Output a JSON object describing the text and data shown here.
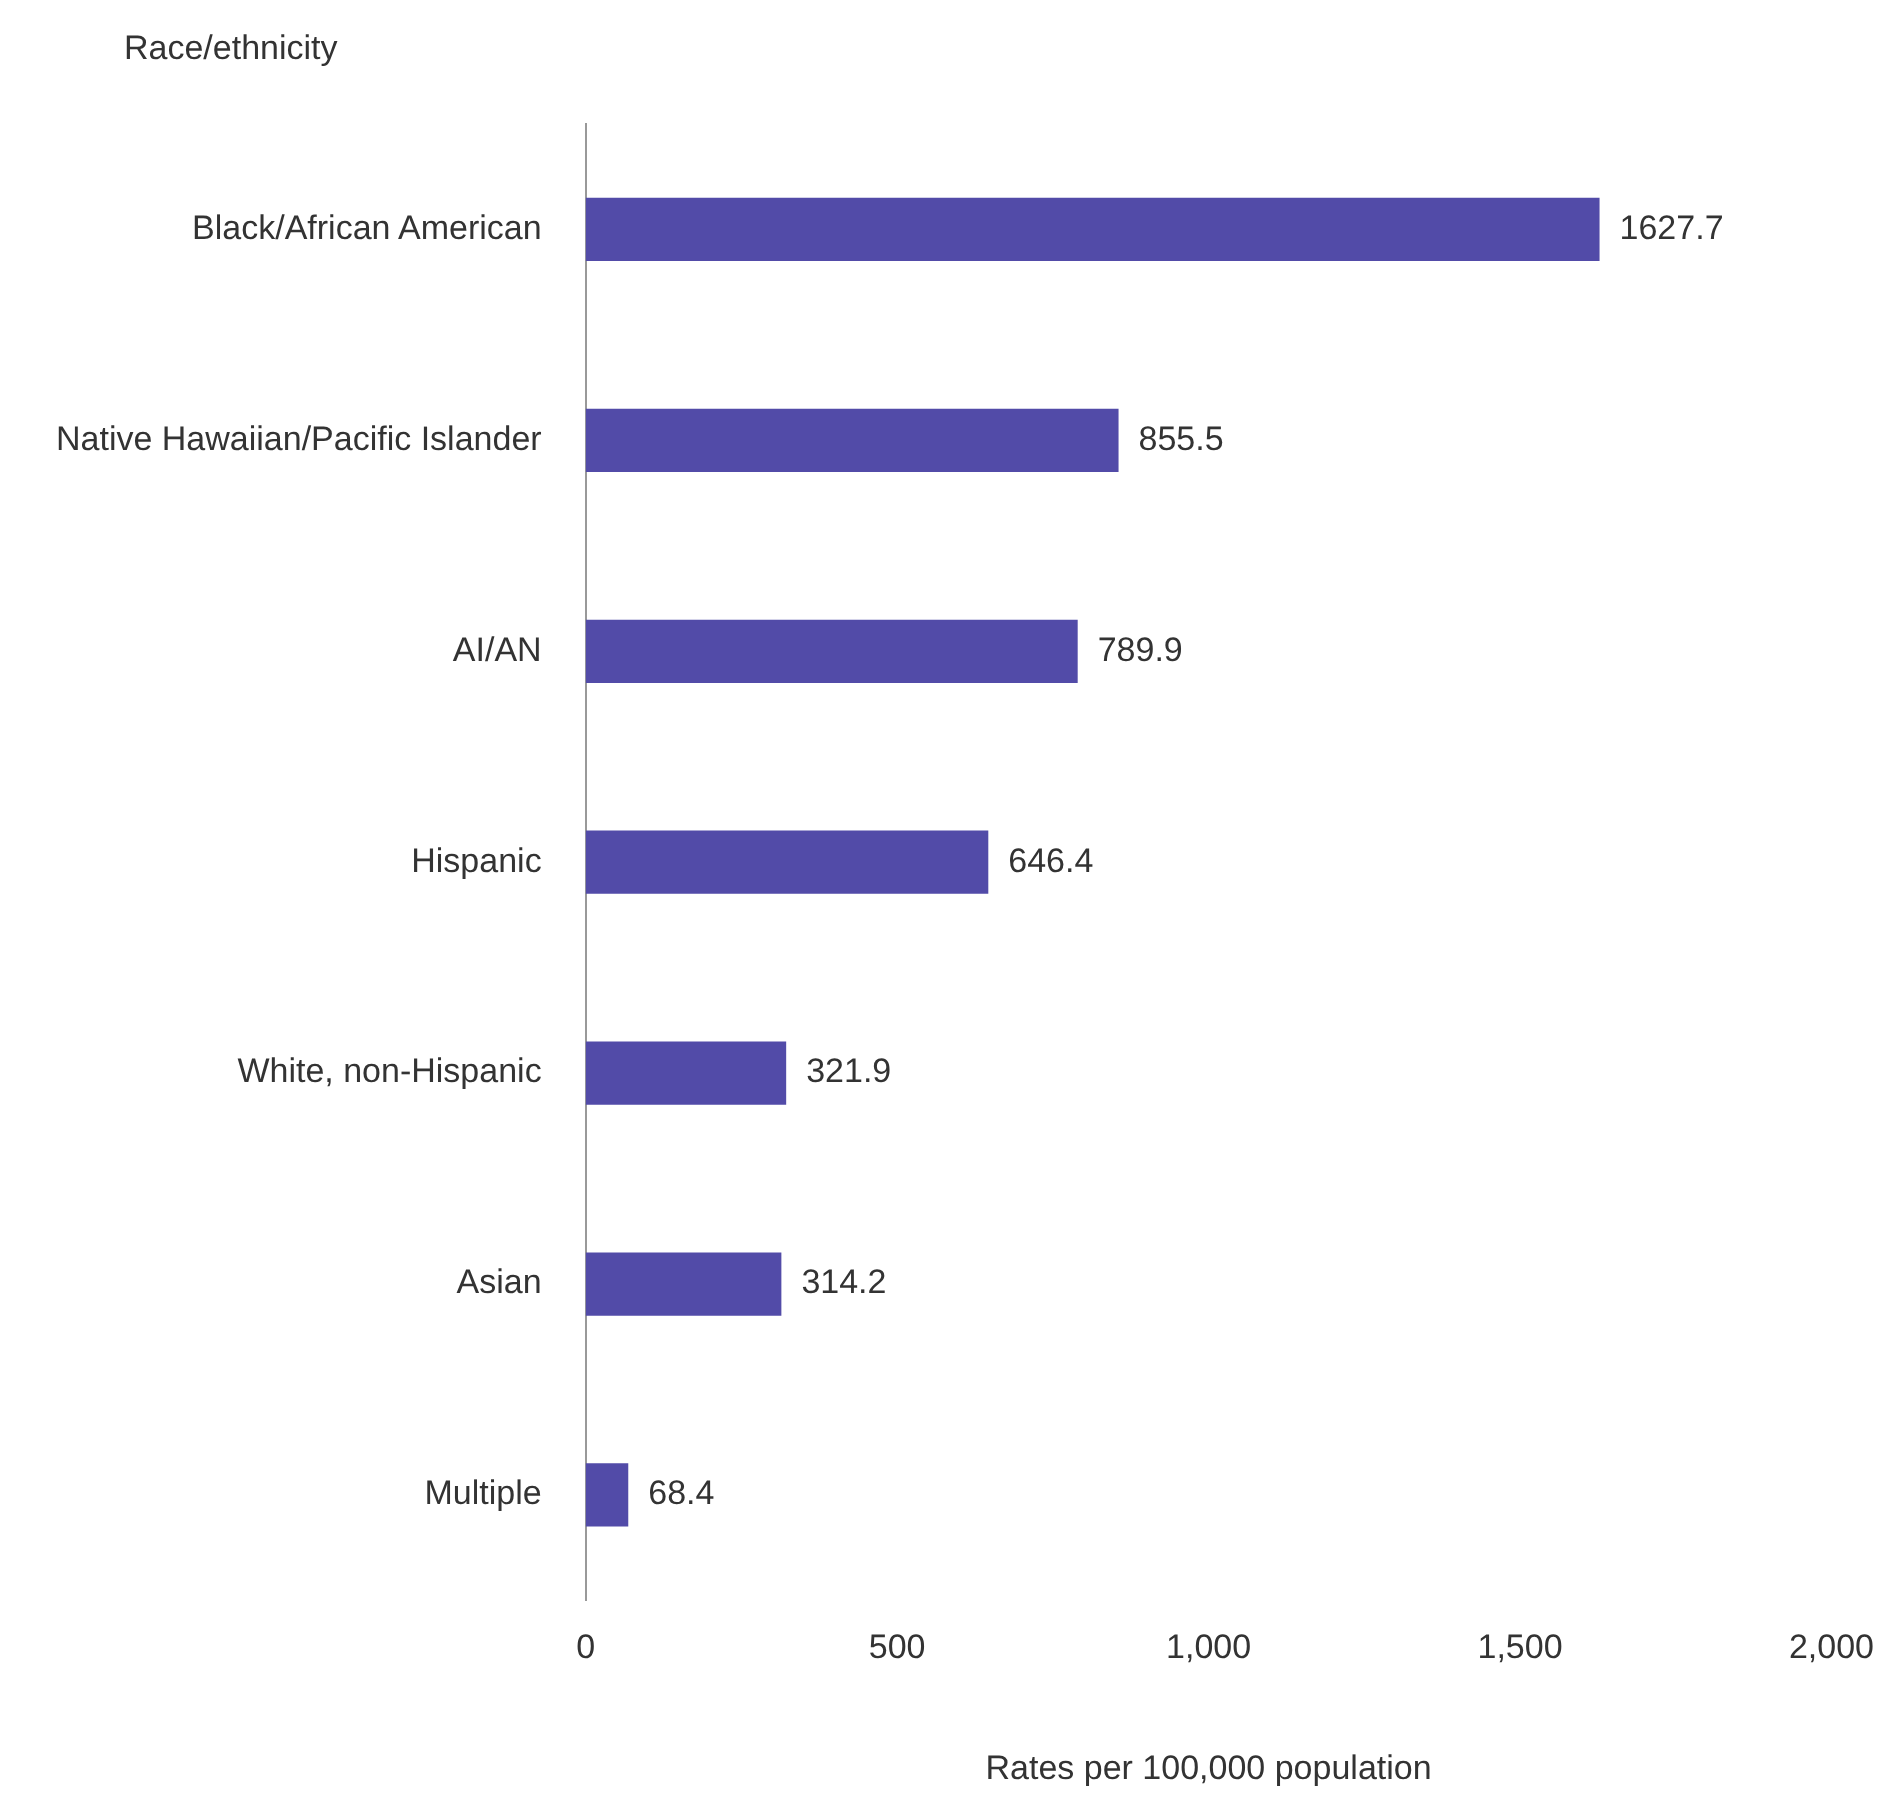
{
  "chart_data": {
    "type": "bar",
    "orientation": "horizontal",
    "ylabel": "Race/ethnicity",
    "xlabel": "Rates per 100,000 population",
    "categories": [
      "Black/African American",
      "Native Hawaiian/Pacific Islander",
      "AI/AN",
      "Hispanic",
      "White, non-Hispanic",
      "Asian",
      "Multiple"
    ],
    "values": [
      1627.7,
      855.5,
      789.9,
      646.4,
      321.9,
      314.2,
      68.4
    ],
    "color": "#524ba8",
    "xlim": [
      0,
      2000
    ],
    "xticks": [
      0,
      500,
      {
        "value": 1000,
        "label": "1,000"
      },
      {
        "value": 1500,
        "label": "1,500"
      },
      {
        "value": 2000,
        "label": "2,000"
      }
    ],
    "grid": false,
    "legend": false,
    "data_labels": true
  }
}
